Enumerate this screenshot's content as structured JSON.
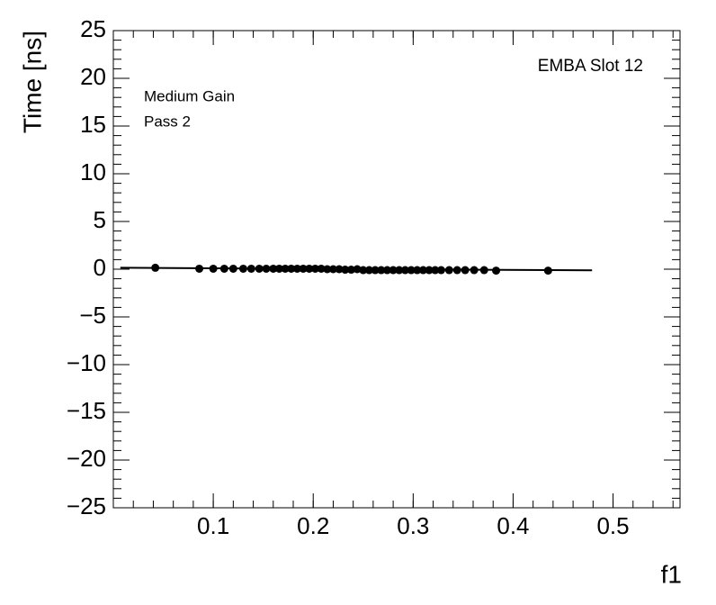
{
  "chart_data": {
    "type": "scatter",
    "x_label": "f1",
    "y_label": "Time [ns]",
    "annotations": [
      "EMBA Slot 12",
      "Medium Gain",
      "Pass 2"
    ],
    "xlim": [
      0,
      0.567
    ],
    "ylim": [
      -25,
      25
    ],
    "xticks": [
      0.1,
      0.2,
      0.3,
      0.4,
      0.5
    ],
    "yticks": [
      {
        "value": -25,
        "label": "−25"
      },
      {
        "value": -20,
        "label": "−20"
      },
      {
        "value": -15,
        "label": "−15"
      },
      {
        "value": -10,
        "label": "−10"
      },
      {
        "value": -5,
        "label": "−5"
      },
      0,
      5,
      10,
      15,
      20,
      25
    ],
    "color": "#000000",
    "x": [
      0.042,
      0.086,
      0.1,
      0.111,
      0.12,
      0.13,
      0.138,
      0.146,
      0.153,
      0.16,
      0.166,
      0.172,
      0.178,
      0.184,
      0.19,
      0.196,
      0.202,
      0.208,
      0.214,
      0.22,
      0.226,
      0.232,
      0.238,
      0.244,
      0.25,
      0.256,
      0.262,
      0.268,
      0.274,
      0.28,
      0.286,
      0.292,
      0.298,
      0.304,
      0.31,
      0.316,
      0.322,
      0.328,
      0.336,
      0.344,
      0.352,
      0.361,
      0.371,
      0.383,
      0.435
    ],
    "values": [
      0.15,
      0.05,
      0.05,
      0.05,
      0.05,
      0.05,
      0.05,
      0.05,
      0.05,
      0.05,
      0.05,
      0.05,
      0.05,
      0.05,
      0.05,
      0.05,
      0.05,
      0.05,
      0,
      0,
      0,
      -0.05,
      -0.05,
      0,
      -0.1,
      -0.1,
      -0.1,
      -0.1,
      -0.1,
      -0.1,
      -0.1,
      -0.1,
      -0.1,
      -0.1,
      -0.1,
      -0.1,
      -0.1,
      -0.1,
      -0.1,
      -0.1,
      -0.1,
      -0.1,
      -0.1,
      -0.15,
      -0.15
    ],
    "fit": {
      "x": [
        0.007,
        0.479
      ],
      "values": [
        0.15,
        -0.12
      ]
    }
  }
}
